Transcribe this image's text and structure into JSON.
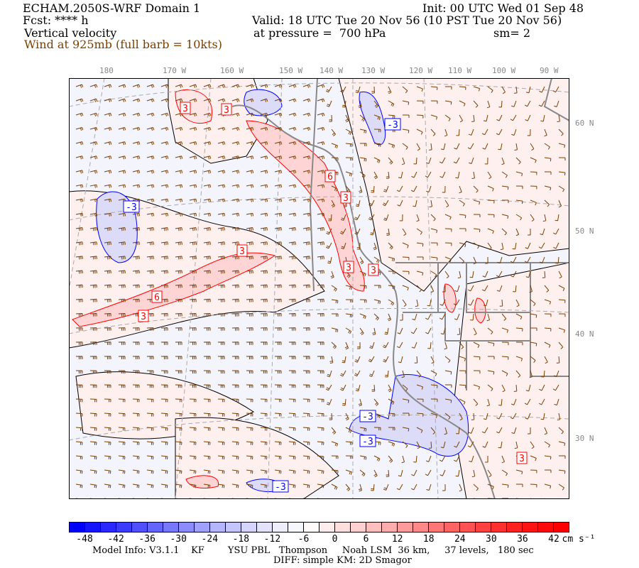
{
  "header": {
    "model_title": "ECHAM.2050S-WRF Domain 1",
    "init": "Init: 00 UTC Wed 01 Sep 48",
    "fcst": "Fcst: **** h",
    "valid": "Valid: 18 UTC Tue 20 Nov 56 (10 PST Tue 20 Nov 56)",
    "field": "Vertical velocity",
    "pressure": "at pressure =  700 hPa",
    "smoothing": "sm= 2",
    "wind": "Wind at 925mb (full barb = 10kts)"
  },
  "map": {
    "lon_labels": [
      "180",
      "170 W",
      "160 W",
      "150 W",
      "140 W",
      "130 W",
      "120 W",
      "110 W",
      "100 W",
      "90 W"
    ],
    "lat_labels": [
      "60 N",
      "50 N",
      "40 N",
      "30 N"
    ],
    "positive_contour_labels": [
      "3",
      "3",
      "6",
      "3",
      "3",
      "3",
      "3",
      "6",
      "3",
      "3"
    ],
    "negative_contour_labels": [
      "-3",
      "-3",
      "-3",
      "-3",
      "-3"
    ],
    "colors": {
      "background": "#f4f4fd",
      "positive": "#ff0000",
      "negative": "#0000ff",
      "barb": "#7a3f00",
      "coast": "#888888"
    }
  },
  "colorbar": {
    "ticks": [
      "-48",
      "-42",
      "-36",
      "-30",
      "-24",
      "-18",
      "-12",
      "-6",
      "0",
      "6",
      "12",
      "18",
      "24",
      "30",
      "36",
      "42"
    ],
    "unit": "cm s⁻¹",
    "colors": [
      "#0000ff",
      "#1414ff",
      "#2828ff",
      "#3c3cff",
      "#5050ff",
      "#6464ff",
      "#7878ff",
      "#8c8cff",
      "#a0a0ff",
      "#b4b4ff",
      "#c4c4ff",
      "#d4d4ff",
      "#e2e2fb",
      "#eeeefb",
      "#f6f6fd",
      "#fffafa",
      "#ffecec",
      "#ffdede",
      "#ffd0d0",
      "#ffbebe",
      "#ffacac",
      "#ff9a9a",
      "#ff8888",
      "#ff7676",
      "#ff6464",
      "#ff5252",
      "#ff4040",
      "#ff3030",
      "#ff2020",
      "#ff1414",
      "#ff0a0a",
      "#ff0000"
    ]
  },
  "footer": {
    "line1": "Model Info: V3.1.1    KF        YSU PBL   Thompson     Noah LSM  36 km,     37 levels,   180 sec",
    "line2": "DIFF: simple KM: 2D Smagor"
  }
}
